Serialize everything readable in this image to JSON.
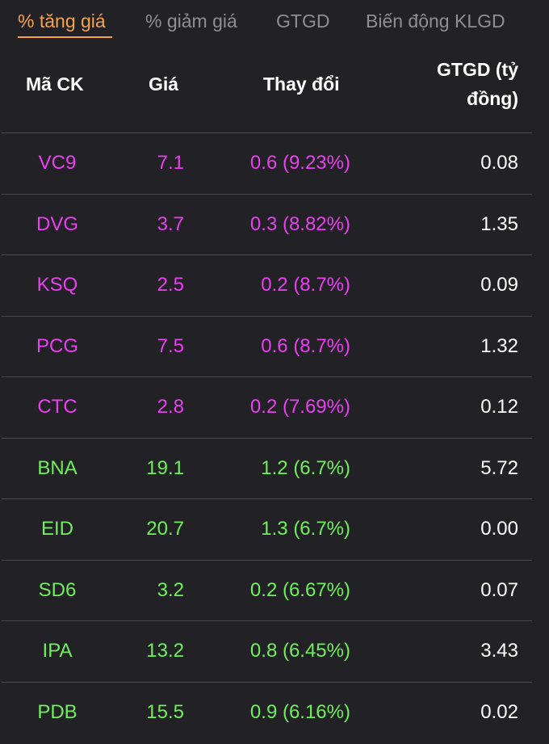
{
  "tabs": [
    {
      "label": "% tăng giá",
      "active": true
    },
    {
      "label": "% giảm giá",
      "active": false
    },
    {
      "label": "GTGD",
      "active": false
    },
    {
      "label": "Biến động KLGD",
      "active": false
    }
  ],
  "colors": {
    "accent": "#f7a24a",
    "ceiling": "#ea3ff0",
    "up": "#6ff05a",
    "background": "#222226",
    "divider": "#4a4a4f"
  },
  "table": {
    "headers": {
      "symbol": "Mã CK",
      "price": "Giá",
      "change": "Thay đổi",
      "value_line1": "GTGD (tỷ",
      "value_line2": "đồng)"
    },
    "rows": [
      {
        "symbol": "VC9",
        "price": "7.1",
        "change": "0.6 (9.23%)",
        "value": "0.08",
        "status": "ceiling"
      },
      {
        "symbol": "DVG",
        "price": "3.7",
        "change": "0.3 (8.82%)",
        "value": "1.35",
        "status": "ceiling"
      },
      {
        "symbol": "KSQ",
        "price": "2.5",
        "change": "0.2 (8.7%)",
        "value": "0.09",
        "status": "ceiling"
      },
      {
        "symbol": "PCG",
        "price": "7.5",
        "change": "0.6 (8.7%)",
        "value": "1.32",
        "status": "ceiling"
      },
      {
        "symbol": "CTC",
        "price": "2.8",
        "change": "0.2 (7.69%)",
        "value": "0.12",
        "status": "ceiling"
      },
      {
        "symbol": "BNA",
        "price": "19.1",
        "change": "1.2 (6.7%)",
        "value": "5.72",
        "status": "up"
      },
      {
        "symbol": "EID",
        "price": "20.7",
        "change": "1.3 (6.7%)",
        "value": "0.00",
        "status": "up"
      },
      {
        "symbol": "SD6",
        "price": "3.2",
        "change": "0.2 (6.67%)",
        "value": "0.07",
        "status": "up"
      },
      {
        "symbol": "IPA",
        "price": "13.2",
        "change": "0.8 (6.45%)",
        "value": "3.43",
        "status": "up"
      },
      {
        "symbol": "PDB",
        "price": "15.5",
        "change": "0.9 (6.16%)",
        "value": "0.02",
        "status": "up"
      }
    ]
  }
}
